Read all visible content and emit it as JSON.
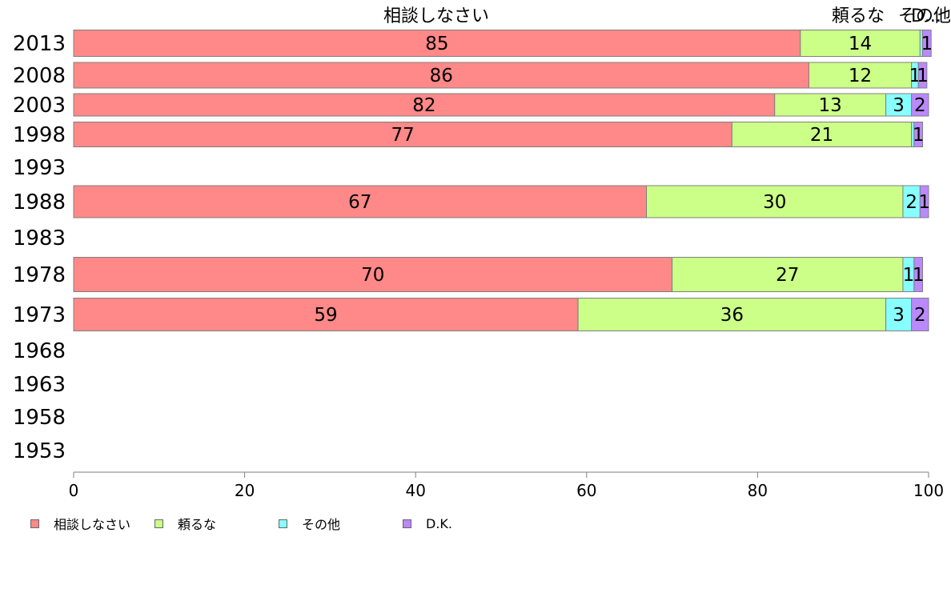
{
  "chart_data": {
    "type": "bar",
    "orientation": "horizontal",
    "stacked": true,
    "categories": [
      "2013",
      "2008",
      "2003",
      "1998",
      "1993",
      "1988",
      "1983",
      "1978",
      "1973",
      "1968",
      "1963",
      "1958",
      "1953"
    ],
    "series": [
      {
        "name": "相談しなさい",
        "color": "#ff8888",
        "values": [
          85,
          86,
          82,
          77,
          null,
          67,
          null,
          70,
          59,
          null,
          null,
          null,
          null
        ]
      },
      {
        "name": "頼るな",
        "color": "#ccff88",
        "values": [
          14,
          12,
          13,
          21,
          null,
          30,
          null,
          27,
          36,
          null,
          null,
          null,
          null
        ]
      },
      {
        "name": "その他",
        "color": "#88ffff",
        "values": [
          0.3,
          0.8,
          3,
          0.3,
          null,
          2,
          null,
          1.3,
          3,
          null,
          null,
          null,
          null
        ]
      },
      {
        "name": "D.K.",
        "color": "#bb88ff",
        "values": [
          1,
          1,
          2,
          1,
          null,
          1,
          null,
          1,
          2,
          null,
          null,
          null,
          null
        ]
      }
    ],
    "bar_labels": [
      [
        "85",
        "14",
        "",
        "1"
      ],
      [
        "86",
        "12",
        "1",
        "1"
      ],
      [
        "82",
        "13",
        "3",
        "2"
      ],
      [
        "77",
        "21",
        "",
        "1"
      ],
      null,
      [
        "67",
        "30",
        "2",
        "1"
      ],
      null,
      [
        "70",
        "27",
        "1",
        "1"
      ],
      [
        "59",
        "36",
        "3",
        "2"
      ],
      null,
      null,
      null,
      null
    ],
    "top_labels": [
      "相談しなさい",
      "頼るな",
      "その他",
      "D..."
    ],
    "xlim": [
      0,
      100
    ],
    "xticks": [
      "0",
      "20",
      "40",
      "60",
      "80",
      "100"
    ],
    "legend_position": "bottom-left",
    "grid": false
  },
  "legend": [
    {
      "label": "相談しなさい",
      "color": "#ff8888"
    },
    {
      "label": "頼るな",
      "color": "#ccff88"
    },
    {
      "label": "その他",
      "color": "#88ffff"
    },
    {
      "label": "D.K.",
      "color": "#bb88ff"
    }
  ]
}
